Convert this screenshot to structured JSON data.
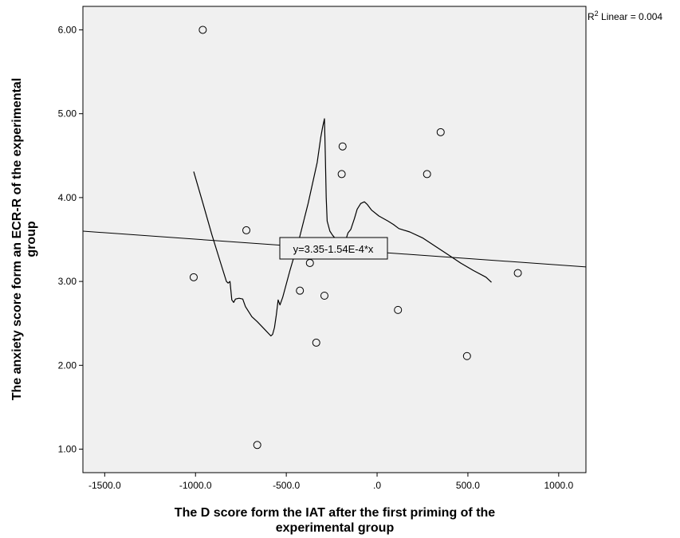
{
  "chart_data": {
    "type": "scatter",
    "xlabel": [
      "The D score form the IAT after the first priming of the",
      "experimental group"
    ],
    "ylabel": [
      "The anxiety score form an ECR-R of the experimental",
      "group"
    ],
    "xlim": [
      -1620,
      1150
    ],
    "ylim": [
      0.72,
      6.28
    ],
    "x_ticks": [
      {
        "value": -1500,
        "label": "-1500.0"
      },
      {
        "value": -1000,
        "label": "-1000.0"
      },
      {
        "value": -500,
        "label": "-500.0"
      },
      {
        "value": 0,
        "label": ".0"
      },
      {
        "value": 500,
        "label": "500.0"
      },
      {
        "value": 1000,
        "label": "1000.0"
      }
    ],
    "y_ticks": [
      {
        "value": 1,
        "label": "1.00"
      },
      {
        "value": 2,
        "label": "2.00"
      },
      {
        "value": 3,
        "label": "3.00"
      },
      {
        "value": 4,
        "label": "4.00"
      },
      {
        "value": 5,
        "label": "5.00"
      },
      {
        "value": 6,
        "label": "6.00"
      }
    ],
    "points": [
      {
        "x": -960,
        "y": 6.0
      },
      {
        "x": -1010,
        "y": 3.05
      },
      {
        "x": -720,
        "y": 3.61
      },
      {
        "x": -660,
        "y": 1.05
      },
      {
        "x": -425,
        "y": 2.89
      },
      {
        "x": -370,
        "y": 3.22
      },
      {
        "x": -335,
        "y": 2.27
      },
      {
        "x": -290,
        "y": 2.83
      },
      {
        "x": -190,
        "y": 4.61
      },
      {
        "x": -195,
        "y": 4.28
      },
      {
        "x": 115,
        "y": 2.66
      },
      {
        "x": 275,
        "y": 4.28
      },
      {
        "x": 350,
        "y": 4.78
      },
      {
        "x": 495,
        "y": 2.11
      },
      {
        "x": 775,
        "y": 3.1
      }
    ],
    "linear_fit": {
      "intercept": 3.35,
      "slope": -0.000154,
      "r2_label": "R² Linear = 0.004",
      "r2_prefix": "R",
      "r2_sup": "2",
      "r2_suffix": " Linear = 0.004",
      "equation_label": "y=3.35-1.54E-4*x"
    },
    "loess_curve": [
      [
        -1010,
        4.31
      ],
      [
        -960,
        3.94
      ],
      [
        -910,
        3.56
      ],
      [
        -860,
        3.21
      ],
      [
        -830,
        3.0
      ],
      [
        -820,
        2.98
      ],
      [
        -810,
        3.0
      ],
      [
        -800,
        2.78
      ],
      [
        -790,
        2.75
      ],
      [
        -780,
        2.79
      ],
      [
        -760,
        2.8
      ],
      [
        -740,
        2.79
      ],
      [
        -725,
        2.7
      ],
      [
        -690,
        2.58
      ],
      [
        -660,
        2.52
      ],
      [
        -620,
        2.43
      ],
      [
        -585,
        2.35
      ],
      [
        -575,
        2.37
      ],
      [
        -565,
        2.45
      ],
      [
        -555,
        2.6
      ],
      [
        -545,
        2.78
      ],
      [
        -535,
        2.72
      ],
      [
        -520,
        2.81
      ],
      [
        -480,
        3.13
      ],
      [
        -430,
        3.5
      ],
      [
        -380,
        3.93
      ],
      [
        -330,
        4.42
      ],
      [
        -310,
        4.72
      ],
      [
        -300,
        4.84
      ],
      [
        -290,
        4.94
      ],
      [
        -285,
        4.5
      ],
      [
        -280,
        4.0
      ],
      [
        -275,
        3.72
      ],
      [
        -260,
        3.6
      ],
      [
        -245,
        3.55
      ],
      [
        -225,
        3.5
      ],
      [
        -200,
        3.46
      ],
      [
        -185,
        3.45
      ],
      [
        -175,
        3.48
      ],
      [
        -160,
        3.58
      ],
      [
        -145,
        3.62
      ],
      [
        -125,
        3.75
      ],
      [
        -110,
        3.86
      ],
      [
        -90,
        3.93
      ],
      [
        -70,
        3.95
      ],
      [
        -55,
        3.92
      ],
      [
        -30,
        3.85
      ],
      [
        10,
        3.78
      ],
      [
        60,
        3.72
      ],
      [
        90,
        3.68
      ],
      [
        120,
        3.63
      ],
      [
        180,
        3.59
      ],
      [
        250,
        3.52
      ],
      [
        320,
        3.42
      ],
      [
        390,
        3.32
      ],
      [
        460,
        3.22
      ],
      [
        530,
        3.13
      ],
      [
        600,
        3.05
      ],
      [
        630,
        2.99
      ]
    ]
  }
}
